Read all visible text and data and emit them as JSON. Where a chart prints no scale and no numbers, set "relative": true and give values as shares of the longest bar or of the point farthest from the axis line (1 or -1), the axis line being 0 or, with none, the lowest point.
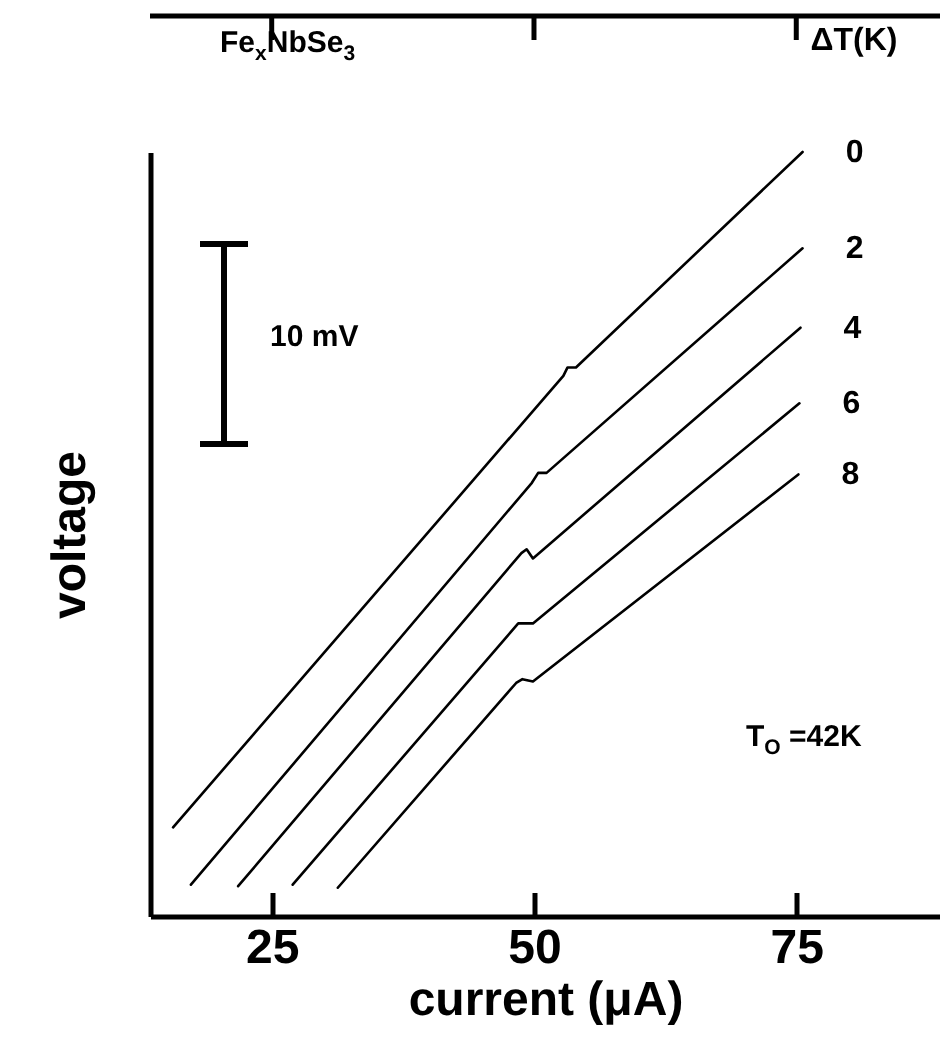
{
  "chart_data": {
    "type": "line",
    "relative": true,
    "xlabel": "current (μA)",
    "ylabel": "voltage",
    "legend_title": "ΔT(K)",
    "annotations": [
      "Fe$_{x}$NbSe$_{3}$",
      "10 mV",
      "T$_{O}$ =42K"
    ],
    "xlim": [
      13.4,
      88.7
    ],
    "xticks": [
      25,
      50,
      75
    ],
    "legend": false,
    "marker": "none",
    "line_style": "solid",
    "series": [
      {
        "name": "0",
        "color": "#000000",
        "x": [
          15.6,
          52.8,
          53.2,
          54.0,
          75.6
        ],
        "values": [
          0.116,
          0.707,
          0.718,
          0.718,
          1.0
        ]
      },
      {
        "name": "2",
        "color": "#000000",
        "x": [
          17.3,
          49.8,
          50.4,
          51.2,
          75.6
        ],
        "values": [
          0.041,
          0.567,
          0.58,
          0.58,
          0.874
        ]
      },
      {
        "name": "4",
        "color": "#000000",
        "x": [
          21.8,
          48.8,
          49.3,
          49.9,
          75.4
        ],
        "values": [
          0.039,
          0.475,
          0.48,
          0.468,
          0.77
        ]
      },
      {
        "name": "6",
        "color": "#000000",
        "x": [
          27.0,
          48.5,
          49.9,
          75.3
        ],
        "values": [
          0.041,
          0.383,
          0.383,
          0.671
        ]
      },
      {
        "name": "8",
        "color": "#000000",
        "x": [
          31.3,
          48.3,
          48.9,
          49.9,
          75.2
        ],
        "values": [
          0.037,
          0.305,
          0.31,
          0.307,
          0.578
        ]
      }
    ]
  }
}
